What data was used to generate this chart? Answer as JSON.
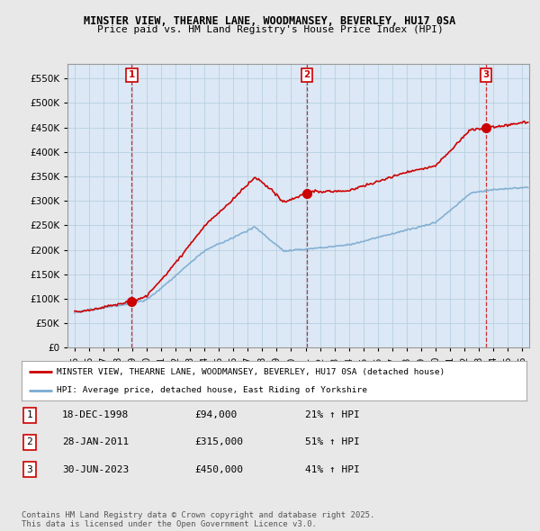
{
  "title1": "MINSTER VIEW, THEARNE LANE, WOODMANSEY, BEVERLEY, HU17 0SA",
  "title2": "Price paid vs. HM Land Registry's House Price Index (HPI)",
  "bg_color": "#e8e8e8",
  "plot_bg_color": "#dce8f5",
  "grid_color": "#b8cfe0",
  "red_color": "#cc0000",
  "blue_color": "#7aaad0",
  "vline_color": "#cc0000",
  "sale_dates": [
    1998.96,
    2011.08,
    2023.5
  ],
  "sale_prices": [
    94000,
    315000,
    450000
  ],
  "sale_labels": [
    "1",
    "2",
    "3"
  ],
  "legend_entry1": "MINSTER VIEW, THEARNE LANE, WOODMANSEY, BEVERLEY, HU17 0SA (detached house)",
  "legend_entry2": "HPI: Average price, detached house, East Riding of Yorkshire",
  "table_rows": [
    [
      "1",
      "18-DEC-1998",
      "£94,000",
      "21% ↑ HPI"
    ],
    [
      "2",
      "28-JAN-2011",
      "£315,000",
      "51% ↑ HPI"
    ],
    [
      "3",
      "30-JUN-2023",
      "£450,000",
      "41% ↑ HPI"
    ]
  ],
  "footnote": "Contains HM Land Registry data © Crown copyright and database right 2025.\nThis data is licensed under the Open Government Licence v3.0.",
  "ylim": [
    0,
    580000
  ],
  "yticks": [
    0,
    50000,
    100000,
    150000,
    200000,
    250000,
    300000,
    350000,
    400000,
    450000,
    500000,
    550000
  ],
  "ytick_labels": [
    "£0",
    "£50K",
    "£100K",
    "£150K",
    "£200K",
    "£250K",
    "£300K",
    "£350K",
    "£400K",
    "£450K",
    "£500K",
    "£550K"
  ],
  "xlim": [
    1994.5,
    2026.5
  ]
}
